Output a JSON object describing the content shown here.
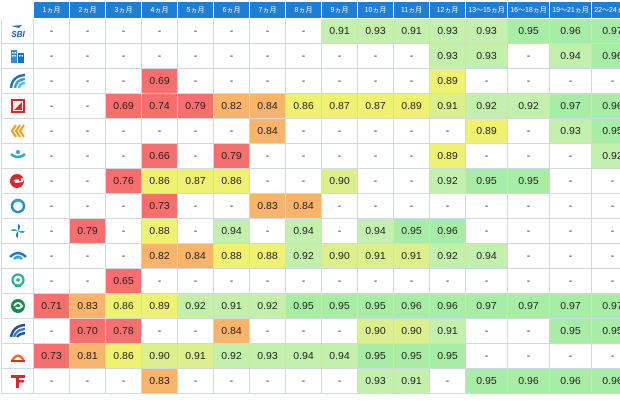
{
  "colors": {
    "header": "#1f7ed3",
    "red": "#f56f6f",
    "orange": "#f8b46a",
    "yellow": "#f1f171",
    "yellow_green": "#dbef8c",
    "light_green": "#c4f0ae",
    "green": "#a8eda5"
  },
  "columns": [
    "1ヵ月",
    "2ヵ月",
    "3ヵ月",
    "4ヵ月",
    "5ヵ月",
    "6ヵ月",
    "7ヵ月",
    "8ヵ月",
    "9ヵ月",
    "10ヵ月",
    "11ヵ月",
    "12ヵ月",
    "13〜15ヵ月",
    "16〜18ヵ月",
    "19〜21ヵ月",
    "22〜24ヵ月"
  ],
  "rows": [
    {
      "icon": "sbi-logo-icon",
      "values": [
        "-",
        "-",
        "-",
        "-",
        "-",
        "-",
        "-",
        "-",
        "0.91",
        "0.93",
        "0.91",
        "0.93",
        "0.93",
        "0.95",
        "0.96",
        "0.97"
      ],
      "colors": [
        "",
        "",
        "",
        "",
        "",
        "",
        "",
        "",
        "light_green",
        "light_green",
        "light_green",
        "light_green",
        "light_green",
        "green",
        "green",
        "green"
      ]
    },
    {
      "icon": "building-logo-icon",
      "values": [
        "-",
        "-",
        "-",
        "-",
        "-",
        "-",
        "-",
        "-",
        "-",
        "-",
        "-",
        "0.93",
        "0.93",
        "-",
        "0.94",
        "0.96"
      ],
      "colors": [
        "",
        "",
        "",
        "",
        "",
        "",
        "",
        "",
        "",
        "",
        "",
        "light_green",
        "light_green",
        "",
        "light_green",
        "green"
      ]
    },
    {
      "icon": "arc-logo-icon",
      "values": [
        "-",
        "-",
        "-",
        "0.69",
        "-",
        "-",
        "-",
        "-",
        "-",
        "-",
        "-",
        "0.89",
        "-",
        "-",
        "-",
        "-"
      ],
      "colors": [
        "",
        "",
        "",
        "red",
        "",
        "",
        "",
        "",
        "",
        "",
        "",
        "yellow",
        "",
        "",
        "",
        ""
      ]
    },
    {
      "icon": "square-arrow-logo-icon",
      "values": [
        "-",
        "-",
        "0.69",
        "0.74",
        "0.79",
        "0.82",
        "0.84",
        "0.86",
        "0.87",
        "0.87",
        "0.89",
        "0.91",
        "0.92",
        "0.92",
        "0.97",
        "0.96"
      ],
      "colors": [
        "",
        "",
        "red",
        "red",
        "red",
        "orange",
        "orange",
        "yellow",
        "yellow",
        "yellow",
        "yellow",
        "yellow_green",
        "light_green",
        "light_green",
        "green",
        "green"
      ]
    },
    {
      "icon": "chevrons-logo-icon",
      "values": [
        "-",
        "-",
        "-",
        "-",
        "-",
        "-",
        "0.84",
        "-",
        "-",
        "-",
        "-",
        "-",
        "0.89",
        "-",
        "0.93",
        "0.95"
      ],
      "colors": [
        "",
        "",
        "",
        "",
        "",
        "",
        "orange",
        "",
        "",
        "",
        "",
        "",
        "yellow",
        "",
        "light_green",
        "green"
      ]
    },
    {
      "icon": "wave-logo-icon",
      "values": [
        "-",
        "-",
        "-",
        "0.66",
        "-",
        "0.79",
        "-",
        "-",
        "-",
        "-",
        "-",
        "0.89",
        "-",
        "-",
        "-",
        "0.92"
      ],
      "colors": [
        "",
        "",
        "",
        "red",
        "",
        "red",
        "",
        "",
        "",
        "",
        "",
        "yellow",
        "",
        "",
        "",
        "light_green"
      ]
    },
    {
      "icon": "red-bird-logo-icon",
      "values": [
        "-",
        "-",
        "0.76",
        "0.86",
        "0.87",
        "0.86",
        "-",
        "-",
        "0.90",
        "-",
        "-",
        "0.92",
        "0.95",
        "0.95",
        "-",
        "-"
      ],
      "colors": [
        "",
        "",
        "red",
        "yellow",
        "yellow",
        "yellow",
        "",
        "",
        "yellow_green",
        "",
        "",
        "light_green",
        "green",
        "green",
        "",
        ""
      ]
    },
    {
      "icon": "ring-logo-icon",
      "values": [
        "-",
        "-",
        "-",
        "0.73",
        "-",
        "-",
        "0.83",
        "0.84",
        "-",
        "-",
        "-",
        "-",
        "-",
        "-",
        "-",
        "-"
      ],
      "colors": [
        "",
        "",
        "",
        "red",
        "",
        "",
        "orange",
        "orange",
        "",
        "",
        "",
        "",
        "",
        "",
        "",
        ""
      ]
    },
    {
      "icon": "pinwheel-logo-icon",
      "values": [
        "-",
        "0.79",
        "-",
        "0.88",
        "-",
        "0.94",
        "-",
        "0.94",
        "-",
        "0.94",
        "0.95",
        "0.96",
        "-",
        "-",
        "-",
        "-"
      ],
      "colors": [
        "",
        "red",
        "",
        "yellow",
        "",
        "light_green",
        "",
        "light_green",
        "",
        "light_green",
        "green",
        "green",
        "",
        "",
        "",
        ""
      ]
    },
    {
      "icon": "blue-wave-logo-icon",
      "values": [
        "-",
        "-",
        "-",
        "0.82",
        "0.84",
        "0.88",
        "0.88",
        "0.92",
        "0.90",
        "0.91",
        "0.91",
        "0.92",
        "0.94",
        "-",
        "-",
        "-"
      ],
      "colors": [
        "",
        "",
        "",
        "orange",
        "orange",
        "yellow",
        "yellow",
        "light_green",
        "yellow_green",
        "yellow_green",
        "yellow_green",
        "light_green",
        "light_green",
        "",
        "",
        ""
      ]
    },
    {
      "icon": "pin-logo-icon",
      "values": [
        "-",
        "-",
        "0.65",
        "-",
        "-",
        "-",
        "-",
        "-",
        "-",
        "-",
        "-",
        "-",
        "-",
        "-",
        "-",
        "-"
      ],
      "colors": [
        "",
        "",
        "red",
        "",
        "",
        "",
        "",
        "",
        "",
        "",
        "",
        "",
        "",
        "",
        "",
        ""
      ]
    },
    {
      "icon": "swirl-logo-icon",
      "values": [
        "0.71",
        "0.83",
        "0.86",
        "0.89",
        "0.92",
        "0.91",
        "0.92",
        "0.95",
        "0.95",
        "0.95",
        "0.96",
        "0.96",
        "0.97",
        "0.97",
        "0.97",
        "0.97"
      ],
      "colors": [
        "red",
        "orange",
        "yellow",
        "yellow",
        "light_green",
        "light_green",
        "light_green",
        "green",
        "green",
        "green",
        "green",
        "green",
        "green",
        "green",
        "green",
        "green"
      ]
    },
    {
      "icon": "fan-logo-icon",
      "values": [
        "-",
        "0.70",
        "0.78",
        "-",
        "-",
        "0.84",
        "-",
        "-",
        "-",
        "0.90",
        "0.90",
        "0.91",
        "-",
        "-",
        "0.95",
        "0.95"
      ],
      "colors": [
        "",
        "red",
        "red",
        "",
        "",
        "orange",
        "",
        "",
        "",
        "yellow_green",
        "yellow_green",
        "light_green",
        "",
        "",
        "green",
        "green"
      ]
    },
    {
      "icon": "orange-dome-logo-icon",
      "values": [
        "0.73",
        "0.81",
        "0.86",
        "0.90",
        "0.91",
        "0.92",
        "0.93",
        "0.94",
        "0.94",
        "0.95",
        "0.95",
        "0.95",
        "-",
        "-",
        "-",
        "-"
      ],
      "colors": [
        "red",
        "orange",
        "yellow",
        "yellow_green",
        "yellow_green",
        "light_green",
        "light_green",
        "light_green",
        "light_green",
        "green",
        "green",
        "green",
        "",
        "",
        "",
        ""
      ]
    },
    {
      "icon": "tf-logo-icon",
      "values": [
        "-",
        "-",
        "-",
        "0.83",
        "-",
        "-",
        "-",
        "-",
        "-",
        "0.93",
        "0.91",
        "-",
        "0.95",
        "0.96",
        "0.96",
        "0.96"
      ],
      "colors": [
        "",
        "",
        "",
        "orange",
        "",
        "",
        "",
        "",
        "",
        "light_green",
        "light_green",
        "",
        "green",
        "green",
        "green",
        "green"
      ]
    }
  ]
}
